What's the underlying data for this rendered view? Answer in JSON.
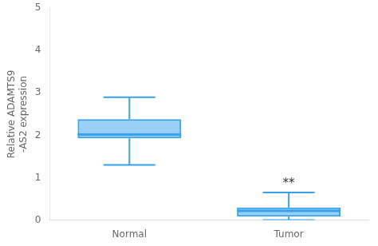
{
  "chart_data": {
    "type": "box",
    "categories": [
      "Normal",
      "Tumor"
    ],
    "boxes": [
      {
        "whislo": 1.3,
        "q1": 1.93,
        "med": 2.02,
        "q3": 2.38,
        "whishi": 2.9
      },
      {
        "whislo": 0.0,
        "q1": 0.08,
        "med": 0.22,
        "q3": 0.3,
        "whishi": 0.65
      }
    ],
    "ylabel": "Relative ADAMTS9\n-AS2 expression",
    "ylim": [
      0,
      5
    ],
    "yticks": [
      0,
      1,
      2,
      3,
      4,
      5
    ],
    "annotations": [
      {
        "text": "**",
        "x": "Tumor",
        "y": 0.72
      }
    ],
    "grid": false
  }
}
